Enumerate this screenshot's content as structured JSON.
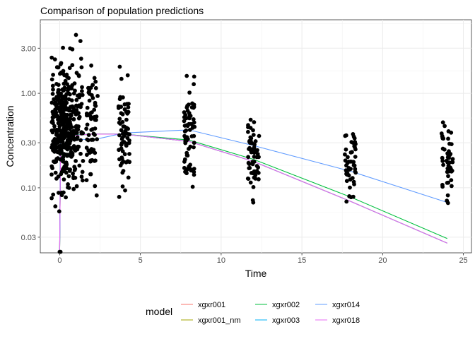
{
  "chart_data": {
    "type": "scatter",
    "title": "Comparison of population predictions",
    "xlabel": "Time",
    "ylabel": "Concentration",
    "xlim": [
      -1.2,
      25.5
    ],
    "ylim": [
      0.0205,
      6.0
    ],
    "y_scale": "log10",
    "grid": true,
    "legend_position": "bottom",
    "x_ticks": [
      0,
      5,
      10,
      15,
      20,
      25
    ],
    "x_tick_labels": [
      "0",
      "5",
      "10",
      "15",
      "20",
      "25"
    ],
    "y_ticks": [
      0.03,
      0.1,
      0.3,
      1.0,
      3.0
    ],
    "y_tick_labels": [
      "0.03",
      "0.10",
      "0.30",
      "1.00",
      "3.00"
    ],
    "y_minor_ticks": [
      0.0548,
      0.173,
      0.548,
      1.73,
      5.48
    ],
    "legend": {
      "title": "model",
      "items": [
        {
          "label": "xgxr001",
          "color": "#F8766D"
        },
        {
          "label": "xgxr001_nm",
          "color": "#A3A500"
        },
        {
          "label": "xgxr002",
          "color": "#00BF3E"
        },
        {
          "label": "xgxr003",
          "color": "#00B0F6"
        },
        {
          "label": "xgxr014",
          "color": "#619CFF"
        },
        {
          "label": "xgxr018",
          "color": "#E76BF3"
        }
      ]
    },
    "point_color": "#000000",
    "observation_groups": [
      {
        "time": 0,
        "y_min": 0.05,
        "y_max": 4.5,
        "n": 180,
        "jitter": 0.5,
        "mode": "logmid",
        "seed": 11
      },
      {
        "time": 0.5,
        "y_min": 0.05,
        "y_max": 4.9,
        "n": 120,
        "jitter": 0.45,
        "mode": "logmid",
        "seed": 12
      },
      {
        "time": 1,
        "y_min": 0.05,
        "y_max": 4.9,
        "n": 90,
        "jitter": 0.45,
        "mode": "logmid",
        "seed": 13
      },
      {
        "time": 2,
        "y_min": 0.05,
        "y_max": 3.8,
        "n": 65,
        "jitter": 0.35,
        "mode": "logmid",
        "seed": 14
      },
      {
        "time": 4,
        "y_min": 0.05,
        "y_max": 2.6,
        "n": 70,
        "jitter": 0.35,
        "mode": "logmid",
        "seed": 15
      },
      {
        "time": 8,
        "y_min": 0.055,
        "y_max": 2.3,
        "n": 70,
        "jitter": 0.35,
        "mode": "logmid",
        "seed": 16
      },
      {
        "time": 12,
        "y_min": 0.05,
        "y_max": 1.1,
        "n": 60,
        "jitter": 0.35,
        "mode": "logmid",
        "seed": 17
      },
      {
        "time": 18,
        "y_min": 0.05,
        "y_max": 0.65,
        "n": 50,
        "jitter": 0.35,
        "mode": "logmid",
        "seed": 18
      },
      {
        "time": 24,
        "y_min": 0.05,
        "y_max": 0.8,
        "n": 50,
        "jitter": 0.35,
        "mode": "logmid",
        "seed": 19
      }
    ],
    "observation_points": [
      {
        "x": 0,
        "y": 0.021
      },
      {
        "x": 0.05,
        "y": 0.021
      }
    ],
    "series": [
      {
        "name": "xgxr001",
        "color": "#F8766D",
        "x": [
          0,
          0.05,
          0.25,
          0.5,
          1,
          2,
          4,
          8,
          12,
          18,
          24
        ],
        "y": [
          0.021,
          0.22,
          0.33,
          0.35,
          0.36,
          0.37,
          0.37,
          0.31,
          0.19,
          0.072,
          0.026
        ]
      },
      {
        "name": "xgxr001_nm",
        "color": "#A3A500",
        "x": [
          0,
          0.05,
          0.25,
          0.5,
          1,
          2,
          4,
          8,
          12,
          18,
          24
        ],
        "y": [
          0.021,
          0.22,
          0.33,
          0.35,
          0.36,
          0.37,
          0.37,
          0.31,
          0.19,
          0.072,
          0.026
        ]
      },
      {
        "name": "xgxr002",
        "color": "#00BF3E",
        "x": [
          0,
          0.05,
          0.25,
          0.5,
          1,
          2,
          4,
          8,
          12,
          18,
          24
        ],
        "y": [
          0.021,
          0.23,
          0.34,
          0.36,
          0.365,
          0.37,
          0.37,
          0.32,
          0.2,
          0.08,
          0.029
        ]
      },
      {
        "name": "xgxr003",
        "color": "#00B0F6",
        "x": [
          0,
          0.05,
          0.25,
          0.5,
          1,
          2,
          4,
          8,
          12,
          18,
          24
        ],
        "y": [
          0.021,
          0.22,
          0.33,
          0.35,
          0.36,
          0.37,
          0.37,
          0.31,
          0.19,
          0.072,
          0.026
        ]
      },
      {
        "name": "xgxr014",
        "color": "#619CFF",
        "x": [
          0,
          0.05,
          0.25,
          0.5,
          1,
          2,
          4,
          8,
          12,
          18,
          24
        ],
        "y": [
          0.021,
          0.36,
          0.35,
          0.34,
          0.33,
          0.32,
          0.38,
          0.41,
          0.28,
          0.15,
          0.07
        ]
      },
      {
        "name": "xgxr018",
        "color": "#E76BF3",
        "x": [
          0,
          0.05,
          0.25,
          0.5,
          1,
          2,
          4,
          8,
          12,
          18,
          24
        ],
        "y": [
          0.021,
          0.22,
          0.33,
          0.35,
          0.36,
          0.37,
          0.37,
          0.31,
          0.19,
          0.072,
          0.026
        ]
      }
    ]
  }
}
